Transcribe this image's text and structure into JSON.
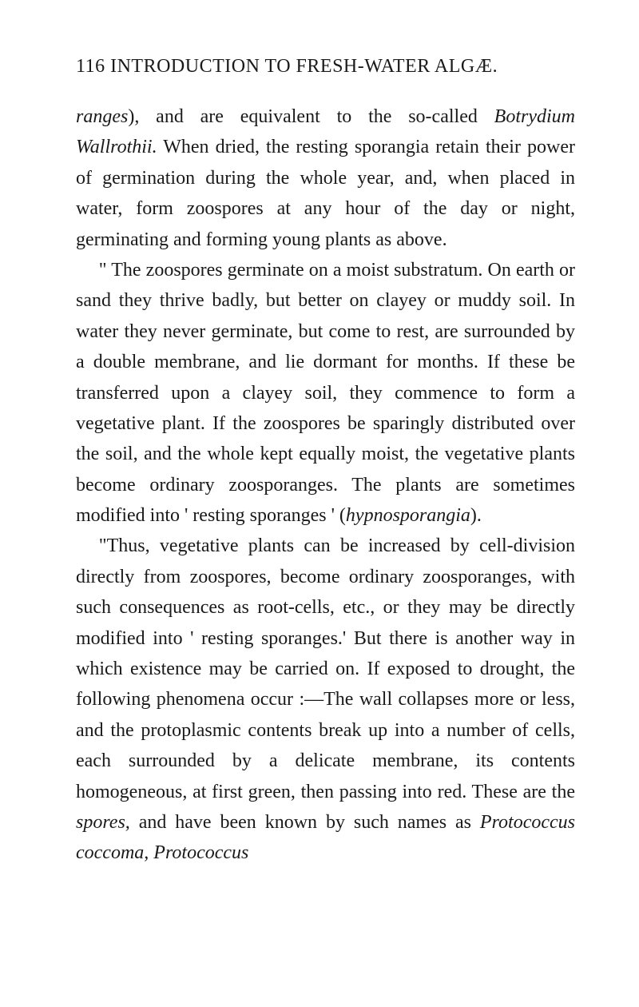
{
  "header": {
    "page_number": "116",
    "title": "INTRODUCTION TO FRESH-WATER ALGÆ."
  },
  "paragraphs": {
    "p1_pre": "ranges",
    "p1_mid1": "), and are equivalent to the so-called ",
    "p1_it1": "Botrydium Wallrothii.",
    "p1_post1": " When dried, the resting sporangia retain their power of germination during the whole year, and, when placed in water, form zoospores at any hour of the day or night, germinating and forming young plants as above.",
    "p2": "\" The zoospores germinate on a moist substratum. On earth or sand they thrive badly, but better on clayey or muddy soil. In water they never germinate, but come to rest, are surrounded by a double membrane, and lie dormant for months. If these be transferred upon a clayey soil, they commence to form a vegetative plant. If the zoospores be sparingly distributed over the soil, and the whole kept equally moist, the vegetative plants become ordinary zoosporanges. The plants are sometimes modified into ' resting sporanges ' (",
    "p2_it": "hypnosporangia",
    "p2_post": ").",
    "p3_pre": "\"Thus, vegetative plants can be increased by cell-division directly from zoospores, become ordinary zoosporanges, with such consequences as root-cells, etc., or they may be directly modified into ' resting sporanges.' But there is another way in which existence may be carried on. If exposed to drought, the following phenomena occur :—The wall collapses more or less, and the protoplasmic contents break up into a number of cells, each surrounded by a delicate membrane, its contents homogeneous, at first green, then passing into red. These are the ",
    "p3_it1": "spores,",
    "p3_mid": " and have been known by such names as ",
    "p3_it2": "Protococcus coccoma, Protococcus"
  }
}
